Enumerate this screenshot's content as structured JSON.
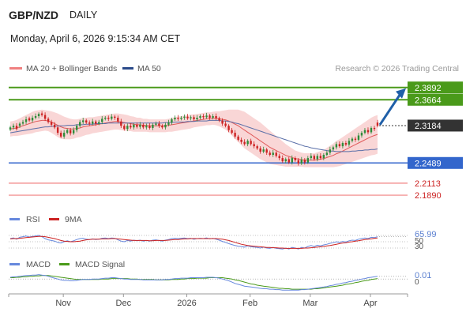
{
  "header": {
    "symbol": "GBP/NZD",
    "timeframe": "DAILY",
    "datetime": "Monday, April 6, 2026 9:15:34 AM CET"
  },
  "legend": {
    "ma20_bb": "MA 20 + Bollinger Bands",
    "ma50": "MA 50",
    "copyright": "Research © 2026 Trading Central"
  },
  "colors": {
    "up": "#2e8b3a",
    "down": "#cc2222",
    "bb_fill": "#f9d6d6",
    "ma20": "#e05a5a",
    "ma50": "#5a6fa8",
    "resistance": "#4a9a1a",
    "support": "#3366cc",
    "target_line": "#f08080",
    "arrow": "#1f5fa8",
    "rsi": "#6688dd",
    "rsi_ma": "#cc2222",
    "macd": "#6688dd",
    "macd_signal": "#4a9a1a"
  },
  "chart_data": {
    "type": "candlestick",
    "x_labels": [
      "Nov",
      "Dec",
      "2026",
      "Feb",
      "Mar",
      "Apr"
    ],
    "y_range": [
      2.17,
      2.405
    ],
    "closes": [
      2.315,
      2.318,
      2.312,
      2.322,
      2.325,
      2.33,
      2.328,
      2.333,
      2.336,
      2.34,
      2.338,
      2.331,
      2.325,
      2.32,
      2.315,
      2.305,
      2.298,
      2.305,
      2.31,
      2.304,
      2.31,
      2.318,
      2.325,
      2.328,
      2.324,
      2.322,
      2.326,
      2.322,
      2.325,
      2.331,
      2.333,
      2.331,
      2.335,
      2.333,
      2.326,
      2.318,
      2.312,
      2.318,
      2.315,
      2.32,
      2.316,
      2.32,
      2.315,
      2.318,
      2.314,
      2.32,
      2.322,
      2.318,
      2.315,
      2.32,
      2.324,
      2.33,
      2.333,
      2.331,
      2.333,
      2.335,
      2.332,
      2.334,
      2.33,
      2.333,
      2.336,
      2.334,
      2.337,
      2.333,
      2.336,
      2.332,
      2.328,
      2.322,
      2.318,
      2.31,
      2.305,
      2.298,
      2.292,
      2.288,
      2.284,
      2.29,
      2.284,
      2.28,
      2.276,
      2.27,
      2.274,
      2.268,
      2.264,
      2.268,
      2.262,
      2.258,
      2.252,
      2.256,
      2.25,
      2.258,
      2.254,
      2.248,
      2.255,
      2.25,
      2.258,
      2.262,
      2.256,
      2.262,
      2.258,
      2.264,
      2.268,
      2.274,
      2.278,
      2.284,
      2.28,
      2.286,
      2.283,
      2.29,
      2.294,
      2.292,
      2.3,
      2.305,
      2.31,
      2.306,
      2.314,
      2.312,
      2.318
    ],
    "opens_offset": [
      -0.004,
      -0.003,
      0.006,
      -0.004,
      -0.003,
      -0.005,
      0.004,
      -0.005,
      -0.003,
      -0.004,
      0.003,
      0.007,
      0.006,
      0.005,
      0.005,
      0.01,
      0.007,
      -0.007,
      -0.005,
      0.006,
      -0.006,
      -0.008,
      -0.007,
      -0.003,
      0.004,
      0.002,
      -0.004,
      0.004,
      -0.003,
      -0.006,
      -0.002,
      0.002,
      -0.004,
      0.002,
      0.007,
      0.008,
      0.006,
      -0.006,
      0.003,
      -0.005,
      0.004,
      -0.004,
      0.005,
      -0.003,
      0.004,
      -0.006,
      -0.002,
      0.004,
      0.003,
      -0.005,
      -0.004,
      -0.006,
      -0.003,
      0.002,
      -0.002,
      -0.002,
      0.003,
      -0.002,
      0.004,
      -0.003,
      -0.003,
      0.002,
      -0.003,
      0.004,
      -0.003,
      0.004,
      0.004,
      0.006,
      0.004,
      0.008,
      0.005,
      0.007,
      0.006,
      0.004,
      0.004,
      -0.006,
      0.006,
      0.004,
      0.004,
      0.006,
      -0.004,
      0.006,
      0.004,
      -0.004,
      0.006,
      0.004,
      0.006,
      -0.004,
      0.006,
      -0.008,
      0.004,
      0.006,
      -0.007,
      0.005,
      -0.008,
      -0.004,
      0.006,
      -0.006,
      0.004,
      -0.006,
      -0.004,
      -0.006,
      -0.004,
      -0.006,
      0.004,
      -0.006,
      0.003,
      -0.007,
      -0.004,
      0.002,
      -0.008,
      -0.005,
      -0.005,
      0.004,
      -0.008,
      0.002,
      0.006
    ],
    "ma20": [
      2.312,
      2.313,
      2.314,
      2.316,
      2.318,
      2.32,
      2.322,
      2.324,
      2.326,
      2.327,
      2.328,
      2.328,
      2.327,
      2.325,
      2.322,
      2.319,
      2.316,
      2.314,
      2.313,
      2.312,
      2.312,
      2.313,
      2.314,
      2.316,
      2.317,
      2.318,
      2.319,
      2.32,
      2.321,
      2.322,
      2.323,
      2.324,
      2.325,
      2.326,
      2.326,
      2.325,
      2.324,
      2.323,
      2.322,
      2.321,
      2.32,
      2.32,
      2.319,
      2.319,
      2.318,
      2.318,
      2.318,
      2.318,
      2.318,
      2.318,
      2.319,
      2.32,
      2.321,
      2.322,
      2.323,
      2.324,
      2.325,
      2.326,
      2.327,
      2.328,
      2.329,
      2.33,
      2.331,
      2.331,
      2.332,
      2.332,
      2.331,
      2.33,
      2.329,
      2.327,
      2.324,
      2.321,
      2.318,
      2.314,
      2.31,
      2.306,
      2.302,
      2.298,
      2.294,
      2.29,
      2.286,
      2.282,
      2.278,
      2.275,
      2.272,
      2.269,
      2.266,
      2.263,
      2.261,
      2.259,
      2.257,
      2.256,
      2.255,
      2.254,
      2.254,
      2.254,
      2.254,
      2.255,
      2.256,
      2.257,
      2.259,
      2.261,
      2.263,
      2.266,
      2.268,
      2.271,
      2.274,
      2.277,
      2.28,
      2.283,
      2.286,
      2.289,
      2.292,
      2.295,
      2.298,
      2.3,
      2.302
    ],
    "bb_width": [
      0.014,
      0.014,
      0.015,
      0.016,
      0.017,
      0.018,
      0.019,
      0.02,
      0.02,
      0.02,
      0.02,
      0.019,
      0.019,
      0.02,
      0.021,
      0.022,
      0.022,
      0.021,
      0.02,
      0.019,
      0.018,
      0.017,
      0.017,
      0.017,
      0.016,
      0.016,
      0.015,
      0.015,
      0.015,
      0.015,
      0.015,
      0.015,
      0.015,
      0.015,
      0.015,
      0.015,
      0.015,
      0.015,
      0.014,
      0.014,
      0.013,
      0.013,
      0.012,
      0.012,
      0.012,
      0.012,
      0.012,
      0.012,
      0.012,
      0.012,
      0.012,
      0.013,
      0.013,
      0.013,
      0.013,
      0.013,
      0.013,
      0.013,
      0.012,
      0.012,
      0.012,
      0.012,
      0.012,
      0.012,
      0.012,
      0.013,
      0.014,
      0.016,
      0.018,
      0.021,
      0.024,
      0.027,
      0.03,
      0.032,
      0.034,
      0.034,
      0.034,
      0.034,
      0.034,
      0.034,
      0.033,
      0.032,
      0.031,
      0.029,
      0.027,
      0.025,
      0.023,
      0.021,
      0.019,
      0.017,
      0.015,
      0.014,
      0.013,
      0.013,
      0.013,
      0.013,
      0.013,
      0.014,
      0.015,
      0.016,
      0.018,
      0.02,
      0.022,
      0.024,
      0.025,
      0.026,
      0.027,
      0.028,
      0.029,
      0.03,
      0.031,
      0.032,
      0.033,
      0.034,
      0.035,
      0.036,
      0.036
    ],
    "ma50": [
      2.305,
      2.306,
      2.307,
      2.308,
      2.309,
      2.31,
      2.311,
      2.312,
      2.313,
      2.314,
      2.315,
      2.316,
      2.316,
      2.317,
      2.317,
      2.318,
      2.318,
      2.318,
      2.319,
      2.319,
      2.319,
      2.32,
      2.32,
      2.32,
      2.321,
      2.321,
      2.321,
      2.322,
      2.322,
      2.322,
      2.322,
      2.323,
      2.323,
      2.323,
      2.323,
      2.323,
      2.323,
      2.323,
      2.323,
      2.323,
      2.323,
      2.323,
      2.323,
      2.323,
      2.323,
      2.323,
      2.323,
      2.323,
      2.323,
      2.324,
      2.324,
      2.324,
      2.325,
      2.325,
      2.325,
      2.325,
      2.326,
      2.326,
      2.326,
      2.327,
      2.327,
      2.327,
      2.327,
      2.328,
      2.328,
      2.328,
      2.328,
      2.327,
      2.327,
      2.326,
      2.325,
      2.323,
      2.322,
      2.32,
      2.318,
      2.316,
      2.314,
      2.312,
      2.31,
      2.308,
      2.306,
      2.304,
      2.302,
      2.3,
      2.298,
      2.296,
      2.294,
      2.292,
      2.29,
      2.288,
      2.286,
      2.284,
      2.282,
      2.28,
      2.279,
      2.277,
      2.276,
      2.275,
      2.274,
      2.273,
      2.272,
      2.271,
      2.271,
      2.27,
      2.27,
      2.27,
      2.27,
      2.27,
      2.271,
      2.271,
      2.272,
      2.272,
      2.273,
      2.273,
      2.274,
      2.274,
      2.275
    ],
    "levels": {
      "resistance_2": {
        "value": 2.3892,
        "label": "2.3892"
      },
      "resistance_1": {
        "value": 2.3664,
        "label": "2.3664"
      },
      "last": {
        "value": 2.3184,
        "label": "2.3184"
      },
      "support_1": {
        "value": 2.2489,
        "label": "2.2489"
      },
      "target_1": {
        "value": 2.2113,
        "label": "2.2113"
      },
      "target_2": {
        "value": 2.189,
        "label": "2.1890"
      }
    },
    "rsi": {
      "legend": [
        "RSI",
        "9MA"
      ],
      "value_label": "65.99",
      "ticks": [
        "50",
        "30"
      ],
      "y_range": [
        20,
        90
      ],
      "values": [
        60,
        62,
        58,
        64,
        66,
        68,
        65,
        67,
        68,
        70,
        66,
        60,
        56,
        54,
        52,
        48,
        46,
        50,
        53,
        50,
        53,
        57,
        60,
        61,
        58,
        57,
        59,
        57,
        58,
        61,
        62,
        60,
        62,
        61,
        56,
        52,
        50,
        54,
        52,
        55,
        53,
        55,
        52,
        54,
        52,
        55,
        56,
        54,
        52,
        55,
        57,
        60,
        61,
        60,
        61,
        62,
        60,
        61,
        58,
        60,
        61,
        60,
        62,
        59,
        61,
        58,
        55,
        51,
        48,
        44,
        41,
        38,
        36,
        35,
        33,
        37,
        34,
        33,
        32,
        30,
        33,
        30,
        29,
        32,
        29,
        28,
        27,
        30,
        27,
        32,
        30,
        27,
        32,
        30,
        35,
        38,
        35,
        39,
        37,
        40,
        42,
        45,
        47,
        50,
        48,
        51,
        49,
        53,
        55,
        54,
        58,
        60,
        62,
        60,
        64,
        63,
        66
      ],
      "ma_values": [
        59,
        60,
        60,
        61,
        62,
        63,
        64,
        65,
        66,
        67,
        67,
        66,
        64,
        62,
        60,
        57,
        54,
        52,
        51,
        50,
        50,
        51,
        52,
        54,
        56,
        57,
        58,
        58,
        58,
        59,
        59,
        59,
        60,
        60,
        59,
        58,
        57,
        56,
        55,
        54,
        54,
        54,
        54,
        54,
        53,
        53,
        54,
        54,
        54,
        54,
        55,
        56,
        57,
        57,
        58,
        59,
        59,
        60,
        60,
        60,
        60,
        60,
        60,
        60,
        60,
        60,
        59,
        58,
        56,
        54,
        51,
        48,
        45,
        42,
        40,
        38,
        37,
        36,
        35,
        34,
        33,
        32,
        32,
        31,
        31,
        30,
        30,
        29,
        29,
        29,
        29,
        29,
        29,
        30,
        30,
        31,
        32,
        33,
        34,
        35,
        37,
        38,
        40,
        42,
        44,
        46,
        47,
        49,
        50,
        52,
        53,
        55,
        57,
        58,
        59,
        61,
        62
      ]
    },
    "macd": {
      "legend": [
        "MACD",
        "MACD Signal"
      ],
      "value_label": "0.01",
      "ticks": [
        "0"
      ],
      "y_range": [
        -0.03,
        0.02
      ],
      "values": [
        0.004,
        0.005,
        0.005,
        0.006,
        0.007,
        0.008,
        0.008,
        0.009,
        0.009,
        0.01,
        0.009,
        0.008,
        0.006,
        0.004,
        0.002,
        0.0,
        -0.002,
        -0.003,
        -0.003,
        -0.004,
        -0.004,
        -0.003,
        -0.002,
        -0.001,
        -0.001,
        -0.001,
        0.0,
        0.0,
        0.0,
        0.001,
        0.002,
        0.002,
        0.003,
        0.003,
        0.002,
        0.001,
        0.0,
        0.0,
        -0.001,
        -0.001,
        -0.001,
        -0.001,
        -0.002,
        -0.002,
        -0.002,
        -0.002,
        -0.002,
        -0.002,
        -0.002,
        -0.001,
        -0.001,
        0.0,
        0.001,
        0.001,
        0.002,
        0.002,
        0.002,
        0.003,
        0.003,
        0.003,
        0.003,
        0.003,
        0.004,
        0.004,
        0.004,
        0.003,
        0.002,
        0.0,
        -0.002,
        -0.004,
        -0.007,
        -0.01,
        -0.012,
        -0.014,
        -0.016,
        -0.017,
        -0.018,
        -0.019,
        -0.02,
        -0.021,
        -0.022,
        -0.022,
        -0.023,
        -0.023,
        -0.024,
        -0.024,
        -0.025,
        -0.025,
        -0.025,
        -0.025,
        -0.025,
        -0.025,
        -0.024,
        -0.024,
        -0.023,
        -0.022,
        -0.021,
        -0.02,
        -0.019,
        -0.018,
        -0.017,
        -0.015,
        -0.014,
        -0.012,
        -0.011,
        -0.009,
        -0.008,
        -0.006,
        -0.005,
        -0.003,
        -0.002,
        0.0,
        0.001,
        0.003,
        0.004,
        0.005,
        0.006
      ],
      "signal": [
        0.003,
        0.003,
        0.004,
        0.004,
        0.005,
        0.005,
        0.006,
        0.006,
        0.007,
        0.007,
        0.008,
        0.008,
        0.008,
        0.007,
        0.006,
        0.005,
        0.004,
        0.003,
        0.002,
        0.001,
        0.0,
        -0.001,
        -0.001,
        -0.001,
        -0.001,
        -0.001,
        -0.001,
        -0.001,
        -0.001,
        0.0,
        0.0,
        0.0,
        0.001,
        0.001,
        0.001,
        0.001,
        0.001,
        0.001,
        0.0,
        0.0,
        0.0,
        -0.001,
        -0.001,
        -0.001,
        -0.001,
        -0.001,
        -0.002,
        -0.002,
        -0.002,
        -0.002,
        -0.002,
        -0.001,
        -0.001,
        -0.001,
        0.0,
        0.0,
        0.001,
        0.001,
        0.001,
        0.002,
        0.002,
        0.002,
        0.002,
        0.003,
        0.003,
        0.003,
        0.003,
        0.003,
        0.002,
        0.001,
        0.0,
        -0.002,
        -0.003,
        -0.005,
        -0.007,
        -0.009,
        -0.011,
        -0.012,
        -0.014,
        -0.015,
        -0.016,
        -0.017,
        -0.018,
        -0.019,
        -0.02,
        -0.021,
        -0.021,
        -0.022,
        -0.022,
        -0.023,
        -0.023,
        -0.023,
        -0.023,
        -0.023,
        -0.023,
        -0.023,
        -0.022,
        -0.022,
        -0.021,
        -0.02,
        -0.019,
        -0.018,
        -0.017,
        -0.016,
        -0.015,
        -0.014,
        -0.012,
        -0.011,
        -0.01,
        -0.008,
        -0.007,
        -0.005,
        -0.004,
        -0.003,
        -0.001,
        0.0,
        0.001
      ]
    }
  }
}
